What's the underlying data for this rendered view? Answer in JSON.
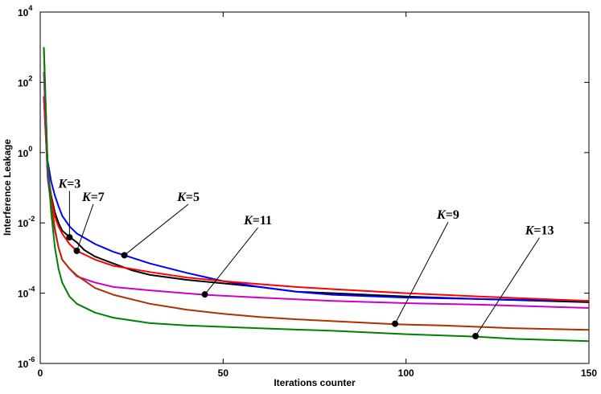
{
  "chart_data": {
    "type": "line",
    "title": "",
    "xlabel": "Iterations counter",
    "ylabel": "Interference Leakage",
    "xlim": [
      0,
      150
    ],
    "ylim": [
      1e-06,
      10000
    ],
    "yscale": "log",
    "grid": false,
    "x_ticks": [
      0,
      50,
      100,
      150
    ],
    "x_tick_labels": [
      "0",
      "50",
      "100",
      "150"
    ],
    "y_ticks": [
      1e-06,
      0.0001,
      0.01,
      1,
      100,
      10000
    ],
    "y_tick_labels": [
      {
        "base": "10",
        "exp": "-6"
      },
      {
        "base": "10",
        "exp": "-4"
      },
      {
        "base": "10",
        "exp": "-2"
      },
      {
        "base": "10",
        "exp": "0"
      },
      {
        "base": "10",
        "exp": "2"
      },
      {
        "base": "10",
        "exp": "4"
      }
    ],
    "series": [
      {
        "name": "K=3",
        "color": "#000000",
        "x": [
          1,
          2,
          3,
          4,
          5,
          6,
          8,
          10,
          12,
          15,
          20,
          25,
          30,
          40,
          50,
          60,
          70,
          80,
          100,
          120,
          150
        ],
        "y": [
          40,
          0.3,
          0.06,
          0.02,
          0.01,
          0.006,
          0.004,
          0.0028,
          0.0017,
          0.0011,
          0.0007,
          0.00045,
          0.00033,
          0.00024,
          0.00019,
          0.00015,
          0.00011,
          0.0001,
          8e-05,
          6.8e-05,
          5.5e-05
        ]
      },
      {
        "name": "K=5",
        "color": "#0000ff",
        "x": [
          1,
          2,
          3,
          4,
          5,
          6,
          8,
          10,
          15,
          20,
          23,
          30,
          40,
          50,
          60,
          70,
          80,
          100,
          120,
          150
        ],
        "y": [
          40,
          0.6,
          0.15,
          0.06,
          0.03,
          0.016,
          0.008,
          0.005,
          0.0025,
          0.0015,
          0.0012,
          0.0007,
          0.00038,
          0.00022,
          0.00015,
          0.00011,
          9e-05,
          7.5e-05,
          6.8e-05,
          6e-05
        ]
      },
      {
        "name": "K=7",
        "color": "#ff0000",
        "x": [
          1,
          2,
          3,
          4,
          5,
          6,
          8,
          10,
          15,
          20,
          30,
          40,
          50,
          60,
          70,
          80,
          100,
          120,
          150
        ],
        "y": [
          40,
          0.3,
          0.05,
          0.015,
          0.008,
          0.005,
          0.0025,
          0.0016,
          0.0009,
          0.0006,
          0.0004,
          0.00028,
          0.00022,
          0.00018,
          0.00015,
          0.00013,
          0.0001,
          8e-05,
          6e-05
        ]
      },
      {
        "name": "K=11",
        "color": "#cc00cc",
        "x": [
          1,
          2,
          3,
          4,
          5,
          6,
          8,
          10,
          15,
          20,
          30,
          45,
          60,
          80,
          100,
          120,
          150
        ],
        "y": [
          200,
          0.2,
          0.03,
          0.006,
          0.002,
          0.0009,
          0.0005,
          0.0003,
          0.0002,
          0.00015,
          0.00012,
          9e-05,
          7.5e-05,
          6e-05,
          5.2e-05,
          4.7e-05,
          3.8e-05
        ]
      },
      {
        "name": "K=9",
        "color": "#b03000",
        "x": [
          1,
          2,
          3,
          4,
          5,
          6,
          8,
          10,
          15,
          20,
          30,
          40,
          50,
          60,
          70,
          80,
          97,
          110,
          130,
          150
        ],
        "y": [
          1000,
          0.5,
          0.04,
          0.007,
          0.002,
          0.0009,
          0.0005,
          0.00032,
          0.00014,
          9e-05,
          5e-05,
          3.4e-05,
          2.6e-05,
          2.1e-05,
          1.8e-05,
          1.6e-05,
          1.3e-05,
          1.2e-05,
          1e-05,
          9e-06
        ]
      },
      {
        "name": "K=13",
        "color": "#008000",
        "x": [
          1,
          2,
          3,
          4,
          5,
          6,
          8,
          10,
          15,
          20,
          30,
          40,
          50,
          60,
          80,
          100,
          119,
          130,
          150
        ],
        "y": [
          1000,
          0.5,
          0.02,
          0.002,
          0.0005,
          0.0002,
          8e-05,
          5e-05,
          2.8e-05,
          2e-05,
          1.4e-05,
          1.2e-05,
          1.1e-05,
          1e-05,
          8.5e-06,
          6.8e-06,
          5.8e-06,
          5e-06,
          4.3e-06
        ]
      }
    ],
    "annotations": [
      {
        "k": "K",
        "rest": "=3",
        "series": "K=3",
        "point_x": 8,
        "point_y": 0.0039,
        "label_at": [
          8,
          0.1
        ]
      },
      {
        "k": "K",
        "rest": "=7",
        "series": "K=7",
        "point_x": 10,
        "point_y": 0.0016,
        "label_at": [
          14.5,
          0.042
        ]
      },
      {
        "k": "K",
        "rest": "=5",
        "series": "K=5",
        "point_x": 23,
        "point_y": 0.0012,
        "label_at": [
          40.5,
          0.042
        ]
      },
      {
        "k": "K",
        "rest": "=11",
        "series": "K=11",
        "point_x": 45,
        "point_y": 9.2e-05,
        "label_at": [
          59.5,
          0.009
        ]
      },
      {
        "k": "K",
        "rest": "=9",
        "series": "K=9",
        "point_x": 97,
        "point_y": 1.35e-05,
        "label_at": [
          111.5,
          0.013
        ]
      },
      {
        "k": "K",
        "rest": "=13",
        "series": "K=13",
        "point_x": 119,
        "point_y": 6e-06,
        "label_at": [
          136.5,
          0.0047
        ]
      }
    ]
  }
}
